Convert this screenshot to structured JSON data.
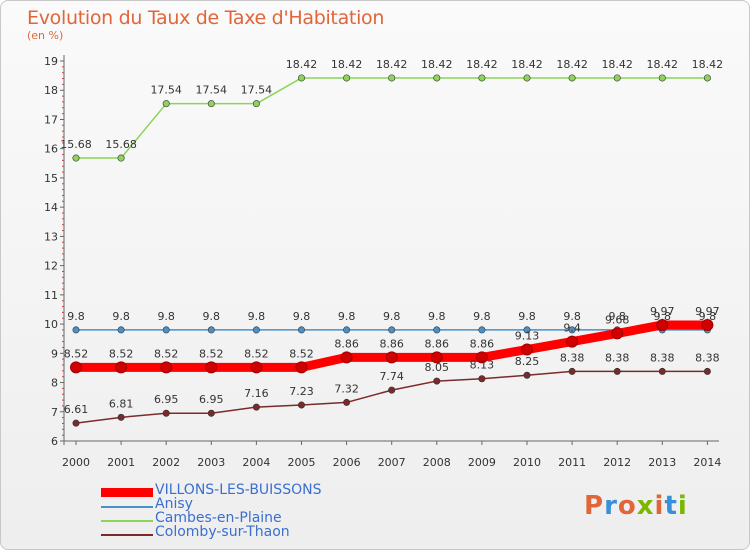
{
  "header": {
    "title": "Evolution du Taux de Taxe d'Habitation",
    "subtitle": "(en %)"
  },
  "logo": {
    "text": "Proxiti",
    "colors": [
      "#e0663a",
      "#3a8fd9",
      "#e0663a",
      "#7ab800",
      "#e0663a",
      "#3a8fd9",
      "#7ab800"
    ]
  },
  "chart_data": {
    "type": "line",
    "title": "Evolution du Taux de Taxe d'Habitation",
    "subtitle": "(en %)",
    "x": [
      2000,
      2001,
      2002,
      2003,
      2004,
      2005,
      2006,
      2007,
      2008,
      2009,
      2010,
      2011,
      2012,
      2013,
      2014
    ],
    "ylim": [
      6,
      19
    ],
    "yticks": [
      6,
      7,
      8,
      9,
      10,
      11,
      12,
      13,
      14,
      15,
      16,
      17,
      18,
      19
    ],
    "grid": false,
    "legend_position": "bottom-left",
    "series": [
      {
        "name": "VILLONS-LES-BUISSONS",
        "color": "#ff0000",
        "style": "thick",
        "values": [
          8.52,
          8.52,
          8.52,
          8.52,
          8.52,
          8.52,
          8.86,
          8.86,
          8.86,
          8.86,
          9.13,
          9.4,
          9.68,
          9.97,
          9.97
        ],
        "labels": [
          "8.52",
          "8.52",
          "8.52",
          "8.52",
          "8.52",
          "8.52",
          "8.86",
          "8.86",
          "8.86",
          "8.86",
          "9.13",
          "9.4",
          "9.68",
          "9.97",
          "9.97"
        ]
      },
      {
        "name": "Anisy",
        "color": "#4a90c8",
        "style": "thin",
        "values": [
          9.8,
          9.8,
          9.8,
          9.8,
          9.8,
          9.8,
          9.8,
          9.8,
          9.8,
          9.8,
          9.8,
          9.8,
          9.8,
          9.8,
          9.8
        ],
        "labels": [
          "9.8",
          "9.8",
          "9.8",
          "9.8",
          "9.8",
          "9.8",
          "9.8",
          "9.8",
          "9.8",
          "9.8",
          "9.8",
          "9.8",
          "9.8",
          "9.8",
          "9.8"
        ]
      },
      {
        "name": "Cambes-en-Plaine",
        "color": "#8cd45a",
        "style": "thin",
        "values": [
          15.68,
          15.68,
          17.54,
          17.54,
          17.54,
          18.42,
          18.42,
          18.42,
          18.42,
          18.42,
          18.42,
          18.42,
          18.42,
          18.42,
          18.42
        ],
        "labels": [
          "15.68",
          "15.68",
          "17.54",
          "17.54",
          "17.54",
          "18.42",
          "18.42",
          "18.42",
          "18.42",
          "18.42",
          "18.42",
          "18.42",
          "18.42",
          "18.42",
          "18.42"
        ]
      },
      {
        "name": "Colomby-sur-Thaon",
        "color": "#7a2a2a",
        "style": "thin",
        "values": [
          6.61,
          6.81,
          6.95,
          6.95,
          7.16,
          7.23,
          7.32,
          7.74,
          8.05,
          8.13,
          8.25,
          8.38,
          8.38,
          8.38,
          8.38
        ],
        "labels": [
          "6.61",
          "6.81",
          "6.95",
          "6.95",
          "7.16",
          "7.23",
          "7.32",
          "7.74",
          "8.05",
          "8.13",
          "8.25",
          "8.38",
          "8.38",
          "8.38",
          "8.38"
        ]
      }
    ]
  }
}
